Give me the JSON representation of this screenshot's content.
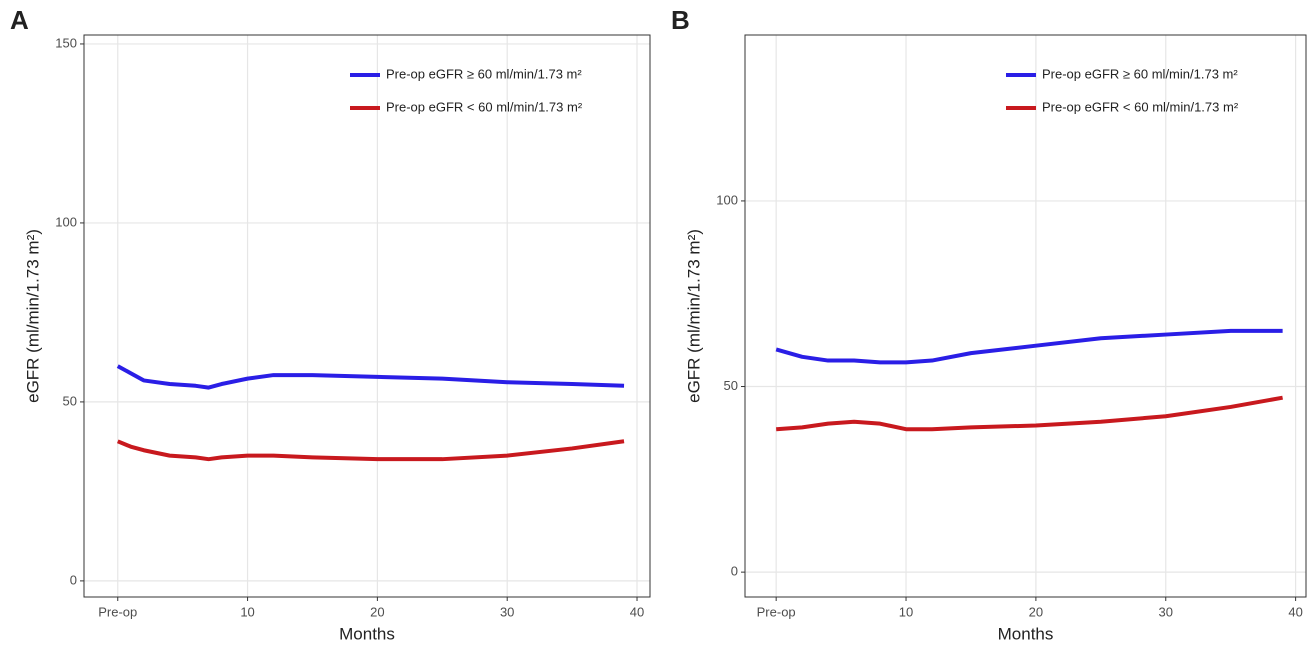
{
  "chart_data": [
    {
      "type": "line",
      "panel_label": "A",
      "x_label": "Months",
      "y_label": "eGFR (ml/min/1.73 m²)",
      "x": [
        0,
        1,
        2,
        4,
        6,
        7,
        8,
        10,
        12,
        15,
        20,
        25,
        30,
        35,
        39
      ],
      "series": [
        {
          "name": "Pre-op eGFR ≥ 60 ml/min/1.73 m²",
          "color": "#2a1ee6",
          "values": [
            60,
            58,
            56,
            55,
            54.5,
            54,
            55,
            56.5,
            57.5,
            57.5,
            57,
            56.5,
            55.5,
            55,
            54.5
          ]
        },
        {
          "name": "Pre-op eGFR < 60 ml/min/1.73 m²",
          "color": "#c8191e",
          "values": [
            39,
            37.5,
            36.5,
            35,
            34.5,
            34,
            34.5,
            35,
            35,
            34.5,
            34,
            34,
            35,
            37,
            39
          ]
        }
      ],
      "xlim": [
        -2.6,
        41
      ],
      "ylim": [
        -4.5,
        152.5
      ],
      "xticks": [
        {
          "value": 0,
          "label": "Pre-op"
        },
        10,
        20,
        30,
        40
      ],
      "yticks": [
        0,
        50,
        100,
        150
      ],
      "grid": true,
      "legend": "top-right"
    },
    {
      "type": "line",
      "panel_label": "B",
      "x_label": "Months",
      "y_label": "eGFR (ml/min/1.73 m²)",
      "x": [
        0,
        2,
        4,
        6,
        8,
        10,
        12,
        15,
        20,
        25,
        30,
        35,
        39
      ],
      "series": [
        {
          "name": "Pre-op eGFR ≥ 60 ml/min/1.73 m²",
          "color": "#2a1ee6",
          "values": [
            60,
            58,
            57,
            57,
            56.5,
            56.5,
            57,
            59,
            61,
            63,
            64,
            65,
            65
          ]
        },
        {
          "name": "Pre-op eGFR < 60 ml/min/1.73 m²",
          "color": "#c8191e",
          "values": [
            38.5,
            39,
            40,
            40.5,
            40,
            38.5,
            38.5,
            39,
            39.5,
            40.5,
            42,
            44.5,
            47
          ]
        }
      ],
      "xlim": [
        -2.4,
        40.8
      ],
      "ylim": [
        -6.7,
        144.7
      ],
      "xticks": [
        {
          "value": 0,
          "label": "Pre-op"
        },
        10,
        20,
        30,
        40
      ],
      "yticks": [
        0,
        50,
        100
      ],
      "grid": true,
      "legend": "top-right"
    }
  ]
}
